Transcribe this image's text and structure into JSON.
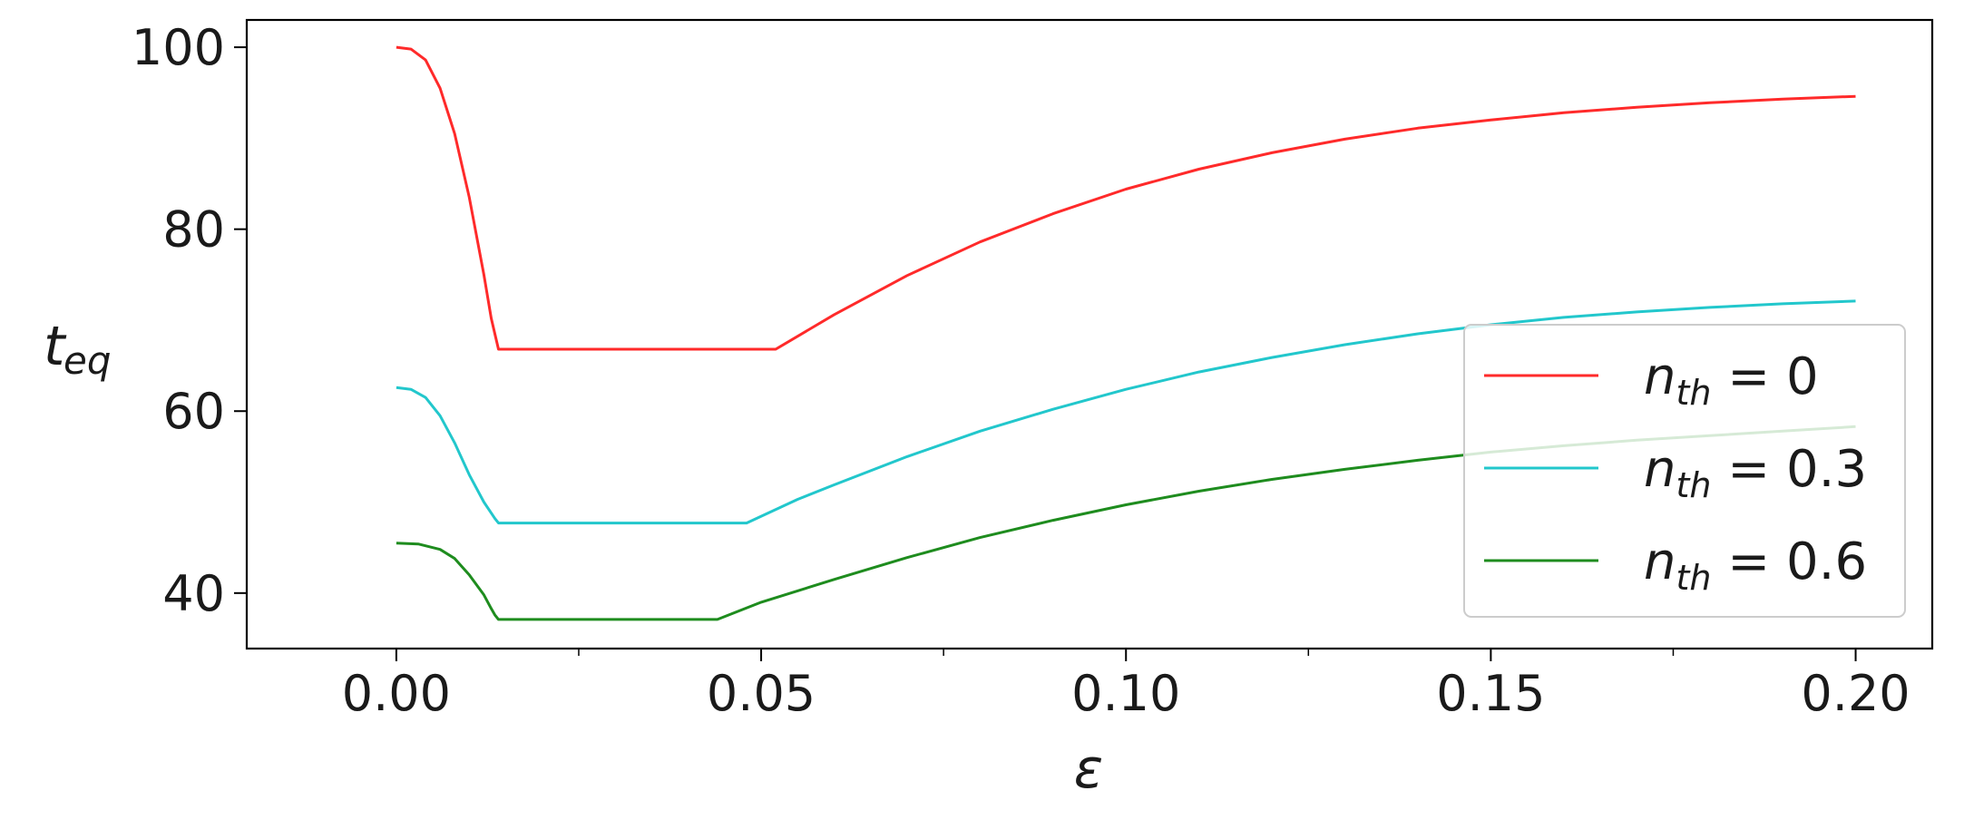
{
  "chart_data": {
    "type": "line",
    "xlabel": "ε",
    "ylabel": {
      "base": "t",
      "sub": "eq"
    },
    "xlim": [
      -0.0205,
      0.2105
    ],
    "ylim": [
      33.9,
      103
    ],
    "xticks": [
      0.0,
      0.05,
      0.1,
      0.15,
      0.2
    ],
    "xtick_labels": [
      "0.00",
      "0.05",
      "0.10",
      "0.15",
      "0.20"
    ],
    "x_minor_ticks": [
      0.025,
      0.075,
      0.125,
      0.175
    ],
    "yticks": [
      40,
      60,
      80,
      100
    ],
    "ytick_labels": [
      "40",
      "60",
      "80",
      "100"
    ],
    "grid": false,
    "legend_position": "lower-right",
    "series": [
      {
        "name": "n_th = 0",
        "legend": {
          "base": "n",
          "sub": "th",
          "rest": " = 0"
        },
        "color": "#ff2a2a",
        "x": [
          0.0,
          0.002,
          0.004,
          0.006,
          0.008,
          0.01,
          0.012,
          0.013,
          0.0135,
          0.014,
          0.02,
          0.03,
          0.04,
          0.05,
          0.052,
          0.06,
          0.07,
          0.08,
          0.09,
          0.1,
          0.11,
          0.12,
          0.13,
          0.14,
          0.15,
          0.16,
          0.17,
          0.18,
          0.19,
          0.2
        ],
        "y": [
          100,
          99.8,
          98.6,
          95.5,
          90.5,
          83.5,
          75.0,
          70.2,
          68.5,
          66.8,
          66.8,
          66.8,
          66.8,
          66.8,
          66.8,
          70.6,
          74.9,
          78.6,
          81.7,
          84.4,
          86.6,
          88.4,
          89.9,
          91.1,
          92.0,
          92.8,
          93.4,
          93.9,
          94.3,
          94.6
        ]
      },
      {
        "name": "n_th = 0.3",
        "legend": {
          "base": "n",
          "sub": "th",
          "rest": " = 0.3"
        },
        "color": "#22c7cc",
        "x": [
          0.0,
          0.002,
          0.004,
          0.006,
          0.008,
          0.01,
          0.012,
          0.013,
          0.0135,
          0.014,
          0.02,
          0.03,
          0.04,
          0.048,
          0.055,
          0.06,
          0.07,
          0.08,
          0.09,
          0.1,
          0.11,
          0.12,
          0.13,
          0.14,
          0.15,
          0.16,
          0.17,
          0.18,
          0.19,
          0.2
        ],
        "y": [
          62.6,
          62.4,
          61.5,
          59.5,
          56.5,
          53.0,
          50.0,
          48.8,
          48.2,
          47.7,
          47.7,
          47.7,
          47.7,
          47.7,
          50.3,
          51.9,
          55.0,
          57.8,
          60.2,
          62.4,
          64.3,
          65.9,
          67.3,
          68.5,
          69.5,
          70.3,
          70.9,
          71.4,
          71.8,
          72.1
        ]
      },
      {
        "name": "n_th = 0.6",
        "legend": {
          "base": "n",
          "sub": "th",
          "rest": " = 0.6"
        },
        "color": "#1e8c1e",
        "x": [
          0.0,
          0.003,
          0.006,
          0.008,
          0.01,
          0.012,
          0.013,
          0.0135,
          0.014,
          0.02,
          0.03,
          0.04,
          0.044,
          0.05,
          0.06,
          0.07,
          0.08,
          0.09,
          0.1,
          0.11,
          0.12,
          0.13,
          0.14,
          0.15,
          0.16,
          0.17,
          0.18,
          0.19,
          0.2
        ],
        "y": [
          45.5,
          45.4,
          44.8,
          43.8,
          42.0,
          39.8,
          38.3,
          37.6,
          37.1,
          37.1,
          37.1,
          37.1,
          37.1,
          39.0,
          41.5,
          43.9,
          46.1,
          48.0,
          49.7,
          51.2,
          52.5,
          53.6,
          54.6,
          55.5,
          56.2,
          56.8,
          57.3,
          57.8,
          58.3
        ]
      }
    ]
  }
}
